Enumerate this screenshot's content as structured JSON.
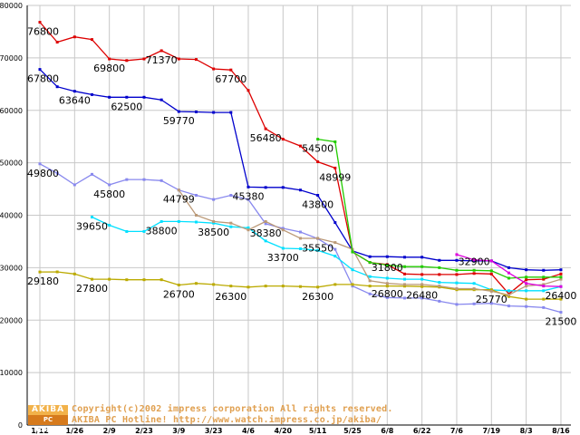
{
  "chart_data": {
    "type": "line",
    "title": "",
    "xlabel": "",
    "ylabel": "",
    "ylim": [
      0,
      80000
    ],
    "yticks": [
      0,
      10000,
      20000,
      30000,
      40000,
      50000,
      60000,
      70000,
      80000
    ],
    "categories": [
      "1/12",
      "1/26",
      "2/9",
      "2/23",
      "3/9",
      "3/23",
      "4/6",
      "4/20",
      "5/11",
      "5/25",
      "6/8",
      "6/22",
      "7/6",
      "7/19",
      "8/3",
      "8/16"
    ],
    "series": [
      {
        "name": "red",
        "color": "#dd0000",
        "points": [
          [
            0,
            76800
          ],
          [
            0.5,
            73000
          ],
          [
            1,
            74000
          ],
          [
            1.5,
            73500
          ],
          [
            2,
            69800
          ],
          [
            2.5,
            69500
          ],
          [
            3,
            69800
          ],
          [
            3.5,
            71370
          ],
          [
            4,
            69800
          ],
          [
            4.5,
            69700
          ],
          [
            5,
            67900
          ],
          [
            5.5,
            67700
          ],
          [
            6,
            63800
          ],
          [
            6.5,
            56480
          ],
          [
            7,
            54500
          ],
          [
            7.5,
            53200
          ],
          [
            8,
            50200
          ],
          [
            8.5,
            48999
          ],
          [
            9,
            33000
          ],
          [
            9.5,
            31000
          ],
          [
            10,
            30600
          ],
          [
            10.5,
            28800
          ],
          [
            11,
            28700
          ],
          [
            11.5,
            28700
          ],
          [
            12,
            28700
          ],
          [
            12.5,
            28900
          ],
          [
            13,
            28800
          ],
          [
            13.5,
            25000
          ],
          [
            14,
            27700
          ],
          [
            14.5,
            27800
          ],
          [
            15,
            28800
          ]
        ]
      },
      {
        "name": "dark-blue",
        "color": "#0000cc",
        "points": [
          [
            0,
            67800
          ],
          [
            0.5,
            64500
          ],
          [
            1,
            63640
          ],
          [
            1.5,
            63000
          ],
          [
            2,
            62500
          ],
          [
            2.5,
            62500
          ],
          [
            3,
            62500
          ],
          [
            3.5,
            62000
          ],
          [
            4,
            59770
          ],
          [
            4.5,
            59700
          ],
          [
            5,
            59600
          ],
          [
            5.5,
            59600
          ],
          [
            6,
            45380
          ],
          [
            6.5,
            45300
          ],
          [
            7,
            45300
          ],
          [
            7.5,
            44800
          ],
          [
            8,
            43800
          ],
          [
            8.5,
            38600
          ],
          [
            9,
            33200
          ],
          [
            9.5,
            32100
          ],
          [
            10,
            32100
          ],
          [
            10.5,
            32000
          ],
          [
            11,
            32000
          ],
          [
            11.5,
            31400
          ],
          [
            12,
            31400
          ],
          [
            12.5,
            31300
          ],
          [
            13,
            31300
          ],
          [
            13.5,
            30000
          ],
          [
            14,
            29600
          ],
          [
            14.5,
            29500
          ],
          [
            15,
            29600
          ]
        ]
      },
      {
        "name": "purple-blue",
        "color": "#8888ee",
        "points": [
          [
            0,
            49800
          ],
          [
            0.5,
            48000
          ],
          [
            1,
            45800
          ],
          [
            1.5,
            47800
          ],
          [
            2,
            45800
          ],
          [
            2.5,
            46800
          ],
          [
            3,
            46800
          ],
          [
            3.5,
            46600
          ],
          [
            4,
            44799
          ],
          [
            4.5,
            43800
          ],
          [
            5,
            43000
          ],
          [
            5.5,
            43800
          ],
          [
            6,
            43000
          ],
          [
            6.5,
            38380
          ],
          [
            7,
            37500
          ],
          [
            7.5,
            36800
          ],
          [
            8,
            35550
          ],
          [
            8.5,
            33500
          ],
          [
            9,
            26500
          ],
          [
            9.5,
            25000
          ],
          [
            10,
            24300
          ],
          [
            10.5,
            24200
          ],
          [
            11,
            24200
          ],
          [
            11.5,
            23600
          ],
          [
            12,
            23000
          ],
          [
            12.5,
            23100
          ],
          [
            13,
            23200
          ],
          [
            13.5,
            22700
          ],
          [
            14,
            22600
          ],
          [
            14.5,
            22400
          ],
          [
            15,
            21500
          ]
        ]
      },
      {
        "name": "cyan",
        "color": "#00e0ff",
        "points": [
          [
            1.5,
            39650
          ],
          [
            2,
            38100
          ],
          [
            2.5,
            36900
          ],
          [
            3,
            36900
          ],
          [
            3.5,
            38800
          ],
          [
            4,
            38800
          ],
          [
            4.5,
            38700
          ],
          [
            5,
            38500
          ],
          [
            5.5,
            37800
          ],
          [
            6,
            37600
          ],
          [
            6.5,
            35100
          ],
          [
            7,
            33700
          ],
          [
            7.5,
            33600
          ],
          [
            8,
            33300
          ],
          [
            8.5,
            32200
          ],
          [
            9,
            29600
          ],
          [
            9.5,
            28300
          ],
          [
            10,
            28000
          ],
          [
            10.5,
            27800
          ],
          [
            11,
            27800
          ],
          [
            11.5,
            27200
          ],
          [
            12,
            27100
          ],
          [
            12.5,
            27000
          ],
          [
            13,
            25770
          ],
          [
            13.5,
            25600
          ],
          [
            14,
            25600
          ],
          [
            14.5,
            25600
          ],
          [
            15,
            26400
          ]
        ]
      },
      {
        "name": "olive",
        "color": "#bbaa00",
        "points": [
          [
            0,
            29180
          ],
          [
            0.5,
            29200
          ],
          [
            1,
            28800
          ],
          [
            1.5,
            27800
          ],
          [
            2,
            27800
          ],
          [
            2.5,
            27700
          ],
          [
            3,
            27700
          ],
          [
            3.5,
            27700
          ],
          [
            4,
            26700
          ],
          [
            4.5,
            27000
          ],
          [
            5,
            26800
          ],
          [
            5.5,
            26500
          ],
          [
            6,
            26300
          ],
          [
            6.5,
            26500
          ],
          [
            7,
            26500
          ],
          [
            7.5,
            26400
          ],
          [
            8,
            26300
          ],
          [
            8.5,
            26800
          ],
          [
            9,
            26800
          ],
          [
            9.5,
            26500
          ],
          [
            10,
            26500
          ],
          [
            10.5,
            26480
          ],
          [
            11,
            26400
          ],
          [
            11.5,
            26300
          ],
          [
            12,
            25800
          ],
          [
            12.5,
            25800
          ],
          [
            13,
            25800
          ],
          [
            13.5,
            24500
          ],
          [
            14,
            24000
          ],
          [
            14.5,
            24000
          ],
          [
            15,
            24000
          ]
        ]
      },
      {
        "name": "tan",
        "color": "#bb9977",
        "points": [
          [
            4,
            44799
          ],
          [
            4.5,
            40000
          ],
          [
            5,
            38800
          ],
          [
            5.5,
            38500
          ],
          [
            6,
            37200
          ],
          [
            6.5,
            38800
          ],
          [
            7,
            37200
          ],
          [
            7.5,
            35600
          ],
          [
            8,
            35600
          ],
          [
            8.5,
            34800
          ],
          [
            9,
            33500
          ],
          [
            9.5,
            27500
          ],
          [
            10,
            27000
          ],
          [
            10.5,
            26800
          ],
          [
            11,
            26800
          ],
          [
            11.5,
            26500
          ],
          [
            12,
            26000
          ],
          [
            12.5,
            26000
          ],
          [
            13,
            25500
          ],
          [
            13.5,
            24800
          ],
          [
            14,
            26500
          ],
          [
            14.5,
            26800
          ],
          [
            15,
            27800
          ]
        ]
      },
      {
        "name": "green",
        "color": "#22cc00",
        "points": [
          [
            8,
            54500
          ],
          [
            8.5,
            54000
          ],
          [
            9,
            33000
          ],
          [
            9.5,
            31000
          ],
          [
            10,
            30500
          ],
          [
            10.5,
            30200
          ],
          [
            11,
            30200
          ],
          [
            11.5,
            30000
          ],
          [
            12,
            29500
          ],
          [
            12.5,
            29500
          ],
          [
            13,
            29400
          ],
          [
            13.5,
            28000
          ],
          [
            14,
            28200
          ],
          [
            14.5,
            28200
          ],
          [
            15,
            28200
          ]
        ]
      },
      {
        "name": "magenta",
        "color": "#dd00dd",
        "points": [
          [
            12,
            32500
          ],
          [
            12.5,
            31500
          ],
          [
            13,
            31300
          ],
          [
            13.5,
            29000
          ],
          [
            14,
            27000
          ],
          [
            14.5,
            26500
          ],
          [
            15,
            26400
          ]
        ]
      }
    ],
    "data_labels": [
      {
        "text": "76800",
        "x": 0,
        "y": 76800
      },
      {
        "text": "67800",
        "x": 0,
        "y": 67800
      },
      {
        "text": "69800",
        "x": 2,
        "y": 69800
      },
      {
        "text": "71370",
        "x": 3.5,
        "y": 71370
      },
      {
        "text": "63640",
        "x": 1,
        "y": 63640
      },
      {
        "text": "62500",
        "x": 2.5,
        "y": 62500
      },
      {
        "text": "59770",
        "x": 4,
        "y": 59770
      },
      {
        "text": "67700",
        "x": 5.5,
        "y": 67700
      },
      {
        "text": "56480",
        "x": 6.5,
        "y": 56480
      },
      {
        "text": "54500",
        "x": 8,
        "y": 54500
      },
      {
        "text": "48999",
        "x": 8.5,
        "y": 48999
      },
      {
        "text": "49800",
        "x": 0,
        "y": 49800
      },
      {
        "text": "45800",
        "x": 2,
        "y": 45800
      },
      {
        "text": "44799",
        "x": 4,
        "y": 44799
      },
      {
        "text": "45380",
        "x": 6,
        "y": 45380
      },
      {
        "text": "43800",
        "x": 8,
        "y": 43800
      },
      {
        "text": "39650",
        "x": 1.5,
        "y": 39650
      },
      {
        "text": "38800",
        "x": 3.5,
        "y": 38800
      },
      {
        "text": "38500",
        "x": 5,
        "y": 38500
      },
      {
        "text": "38380",
        "x": 6.5,
        "y": 38380
      },
      {
        "text": "35550",
        "x": 8,
        "y": 35550
      },
      {
        "text": "33700",
        "x": 7,
        "y": 33700
      },
      {
        "text": "31800",
        "x": 10,
        "y": 31800
      },
      {
        "text": "32900",
        "x": 12.5,
        "y": 32900
      },
      {
        "text": "29180",
        "x": 0,
        "y": 29180
      },
      {
        "text": "27800",
        "x": 1.5,
        "y": 27800
      },
      {
        "text": "26700",
        "x": 4,
        "y": 26700
      },
      {
        "text": "26300",
        "x": 5.5,
        "y": 26300
      },
      {
        "text": "26300",
        "x": 8,
        "y": 26300
      },
      {
        "text": "26800",
        "x": 10,
        "y": 26800
      },
      {
        "text": "26480",
        "x": 11,
        "y": 26480
      },
      {
        "text": "25770",
        "x": 13,
        "y": 25770
      },
      {
        "text": "26400",
        "x": 15,
        "y": 26400
      },
      {
        "text": "21500",
        "x": 15,
        "y": 21500
      }
    ]
  },
  "logo": {
    "top": "AKIBA",
    "bottom": "PC Hotline!"
  },
  "copyright": {
    "line1": "Copyright(c)2002 impress corporation All rights reserved.",
    "line2": "AKIBA PC Hotline! http://www.watch.impress.co.jp/akiba/"
  }
}
